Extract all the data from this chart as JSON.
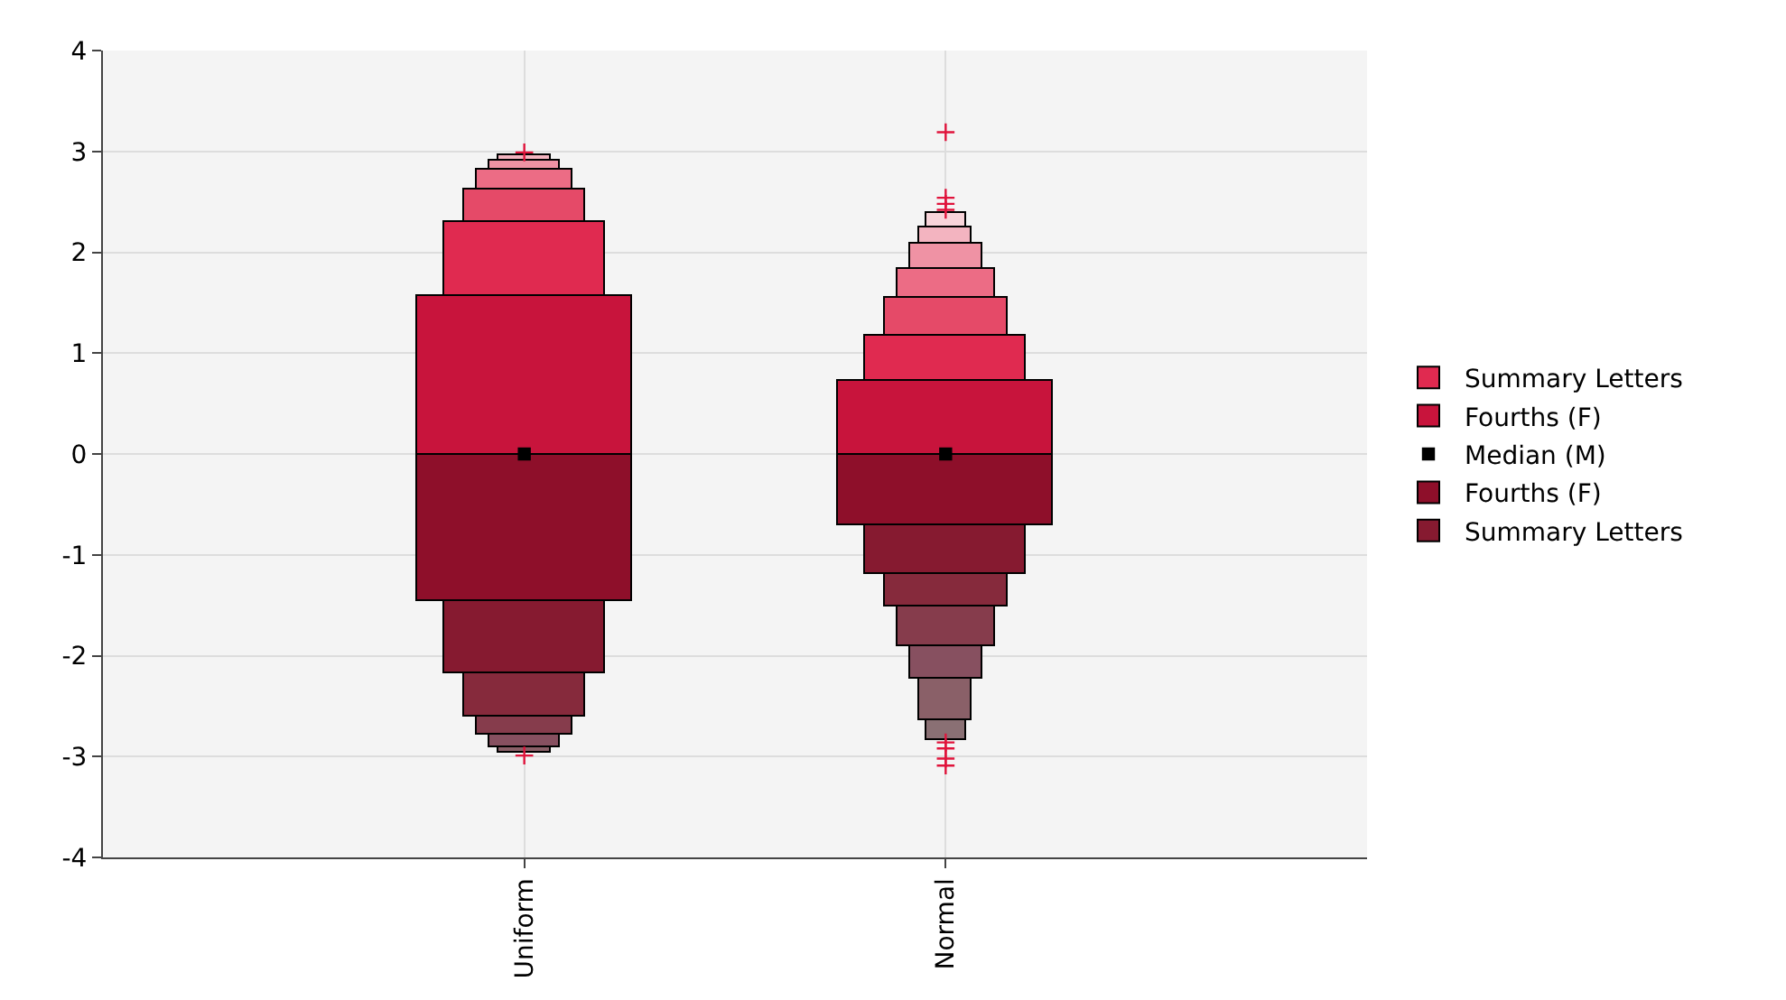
{
  "chart_data": {
    "type": "bar",
    "stacked": true,
    "categories": [
      "Uniform",
      "Normal"
    ],
    "ylim": [
      -4,
      4
    ],
    "yticks": [
      -4,
      -3,
      -2,
      -1,
      0,
      1,
      2,
      3,
      4
    ],
    "grid": true,
    "legend": "right",
    "series": [
      {
        "name": "Fourths (F)",
        "color": "#c8143c",
        "values": [
          1.56,
          0.72
        ]
      },
      {
        "name": "Fourths (F)",
        "color": "#8e0f2a",
        "values": [
          -1.45,
          -0.7
        ]
      },
      {
        "name": "Summary Letters",
        "color": "#e02a50",
        "values": [
          0.74,
          0.45
        ]
      },
      {
        "name": "Summary Letters",
        "color": "#861a30",
        "values": [
          -0.72,
          -0.49
        ]
      },
      {
        "color": "#e54a68",
        "values": [
          0.33,
          0.38
        ]
      },
      {
        "color": "#862a3c",
        "values": [
          -0.44,
          -0.33
        ]
      },
      {
        "color": "#ec6c85",
        "values": [
          0.19,
          0.28
        ]
      },
      {
        "color": "#863c4c",
        "values": [
          -0.17,
          -0.39
        ]
      },
      {
        "color": "#ef92a4",
        "values": [
          0.09,
          0.25
        ]
      },
      {
        "color": "#875060",
        "values": [
          -0.13,
          -0.32
        ]
      },
      {
        "color": "#f3b4c0",
        "values": [
          0.06,
          0.17
        ]
      },
      {
        "color": "#8a6068",
        "values": [
          -0.06,
          -0.41
        ]
      },
      {
        "color": "#f8d4da",
        "values": [
          null,
          0.14
        ]
      },
      {
        "color": "#8a7074",
        "values": [
          null,
          -0.2
        ]
      },
      {
        "name": "Median (M)",
        "type": "scatter",
        "marker": "square",
        "color": "#000000",
        "x": [
          "Uniform",
          "Normal"
        ],
        "values": [
          0,
          0
        ]
      },
      {
        "type": "scatter",
        "marker": "cross",
        "color": "#e0143c",
        "x": [
          "Uniform",
          "Uniform",
          "Normal",
          "Normal",
          "Normal",
          "Normal",
          "Normal",
          "Normal",
          "Normal",
          "Normal"
        ],
        "values": [
          2.99,
          -2.99,
          3.19,
          2.54,
          2.48,
          2.42,
          -2.86,
          -2.92,
          -3.02,
          -3.09
        ]
      }
    ]
  }
}
